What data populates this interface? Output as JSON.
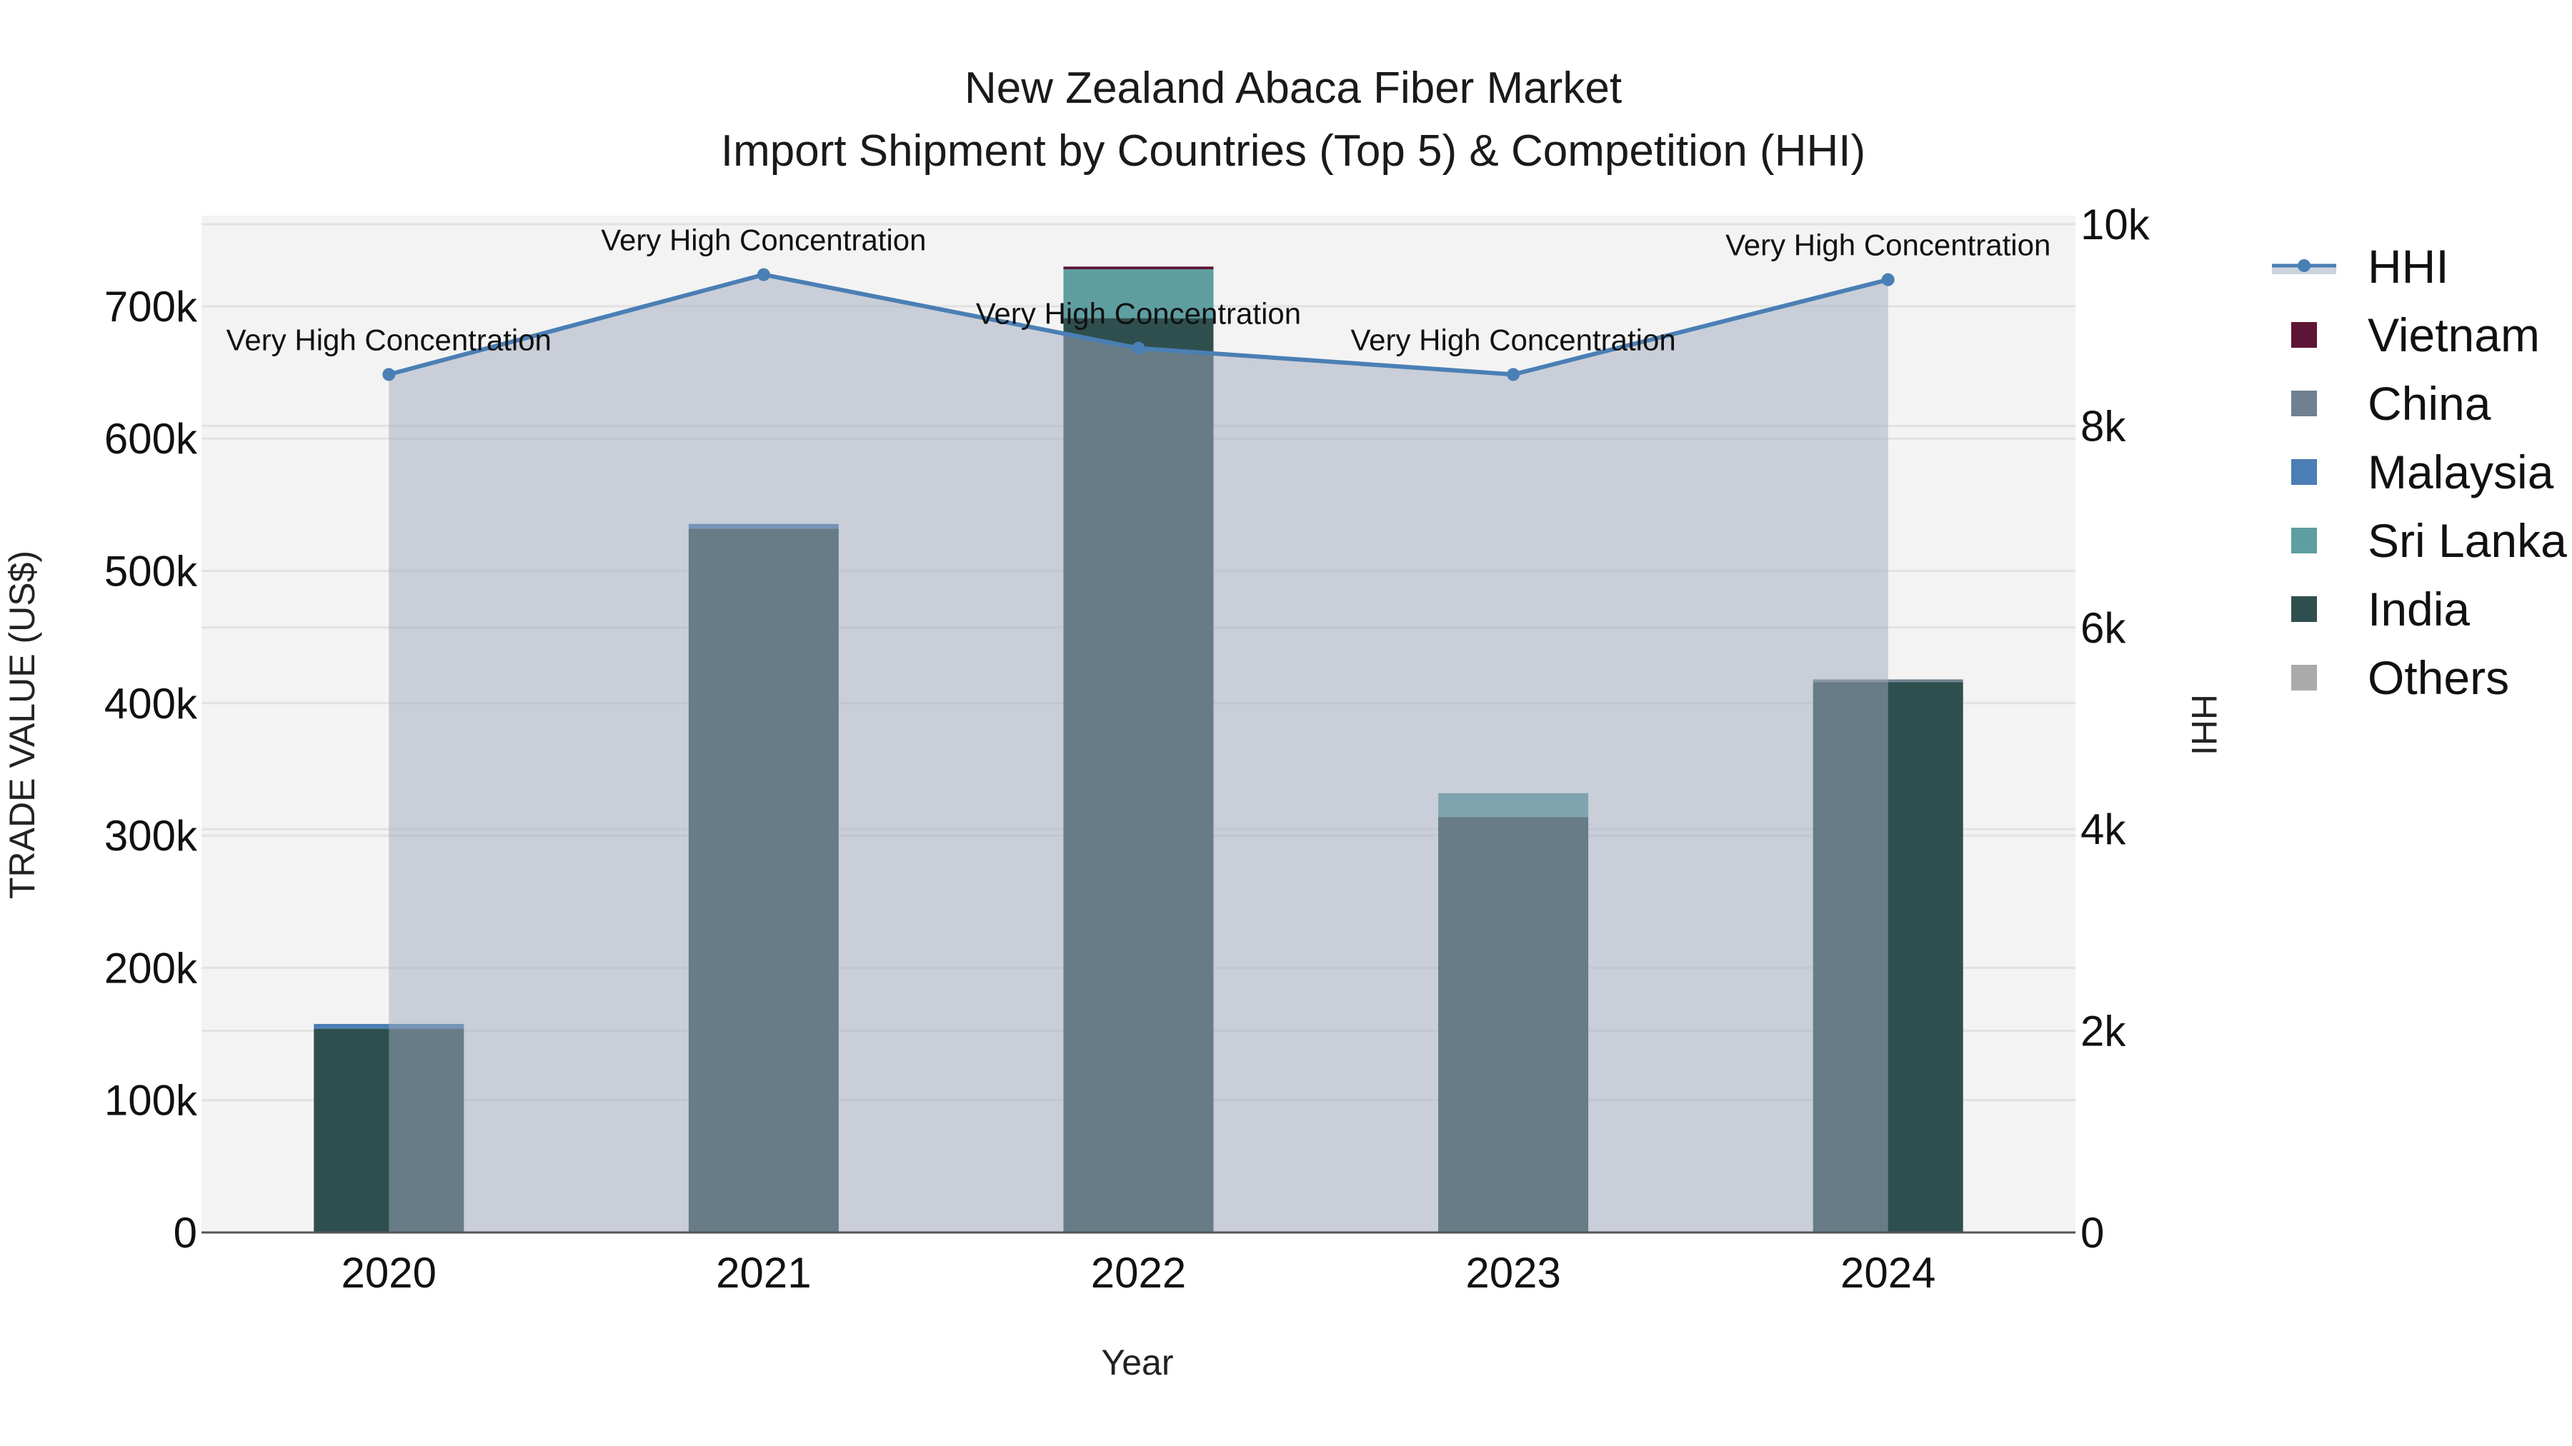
{
  "title": {
    "line1": "New Zealand Abaca Fiber Market",
    "line2": "Import Shipment by Countries (Top 5) & Competition (HHI)"
  },
  "axes": {
    "x_title": "Year",
    "y_left_title": "TRADE VALUE (US$)",
    "y_right_title": "HHI",
    "y_left_ticks": [
      "0",
      "100k",
      "200k",
      "300k",
      "400k",
      "500k",
      "600k",
      "700k"
    ],
    "y_right_ticks": [
      "0",
      "2k",
      "4k",
      "6k",
      "8k",
      "10k"
    ]
  },
  "legend": [
    {
      "name": "HHI",
      "type": "line",
      "color": "#4a7fb5"
    },
    {
      "name": "Vietnam",
      "type": "box",
      "color": "#5e1535"
    },
    {
      "name": "China",
      "type": "box",
      "color": "#6f8090"
    },
    {
      "name": "Malaysia",
      "type": "box",
      "color": "#4a7fb5"
    },
    {
      "name": "Sri Lanka",
      "type": "box",
      "color": "#5f9ea0"
    },
    {
      "name": "India",
      "type": "box",
      "color": "#2f4f4f"
    },
    {
      "name": "Others",
      "type": "box",
      "color": "#aaaaaa"
    }
  ],
  "chart_data": {
    "type": "bar",
    "stacked": true,
    "title": "New Zealand Abaca Fiber Market — Import Shipment by Countries (Top 5) & Competition (HHI)",
    "xlabel": "Year",
    "ylabel": "TRADE VALUE (US$)",
    "y2label": "HHI",
    "categories": [
      "2020",
      "2021",
      "2022",
      "2023",
      "2024"
    ],
    "ylim": [
      0,
      760000
    ],
    "y2lim": [
      0,
      10000
    ],
    "grid": true,
    "legend_position": "right",
    "series": [
      {
        "name": "India",
        "color": "#2f4f4f",
        "values": [
          154000,
          532000,
          691000,
          314000,
          416000
        ]
      },
      {
        "name": "Sri Lanka",
        "color": "#5f9ea0",
        "values": [
          0,
          0,
          37000,
          18000,
          0
        ]
      },
      {
        "name": "Malaysia",
        "color": "#4a7fb5",
        "values": [
          3600,
          3500,
          0,
          0,
          0
        ]
      },
      {
        "name": "China",
        "color": "#6f8090",
        "values": [
          0,
          0,
          0,
          0,
          2000
        ]
      },
      {
        "name": "Vietnam",
        "color": "#5e1535",
        "values": [
          0,
          0,
          2000,
          0,
          0
        ]
      },
      {
        "name": "Others",
        "color": "#aaaaaa",
        "values": [
          0,
          0,
          0,
          0,
          0
        ]
      }
    ],
    "line_series": {
      "name": "HHI",
      "axis": "y2",
      "color": "#4a7fb5",
      "values": [
        8510,
        9500,
        8770,
        8510,
        9450
      ],
      "labels": [
        "Very High Concentration",
        "Very High Concentration",
        "Very High Concentration",
        "Very High Concentration",
        "Very High Concentration"
      ]
    }
  }
}
